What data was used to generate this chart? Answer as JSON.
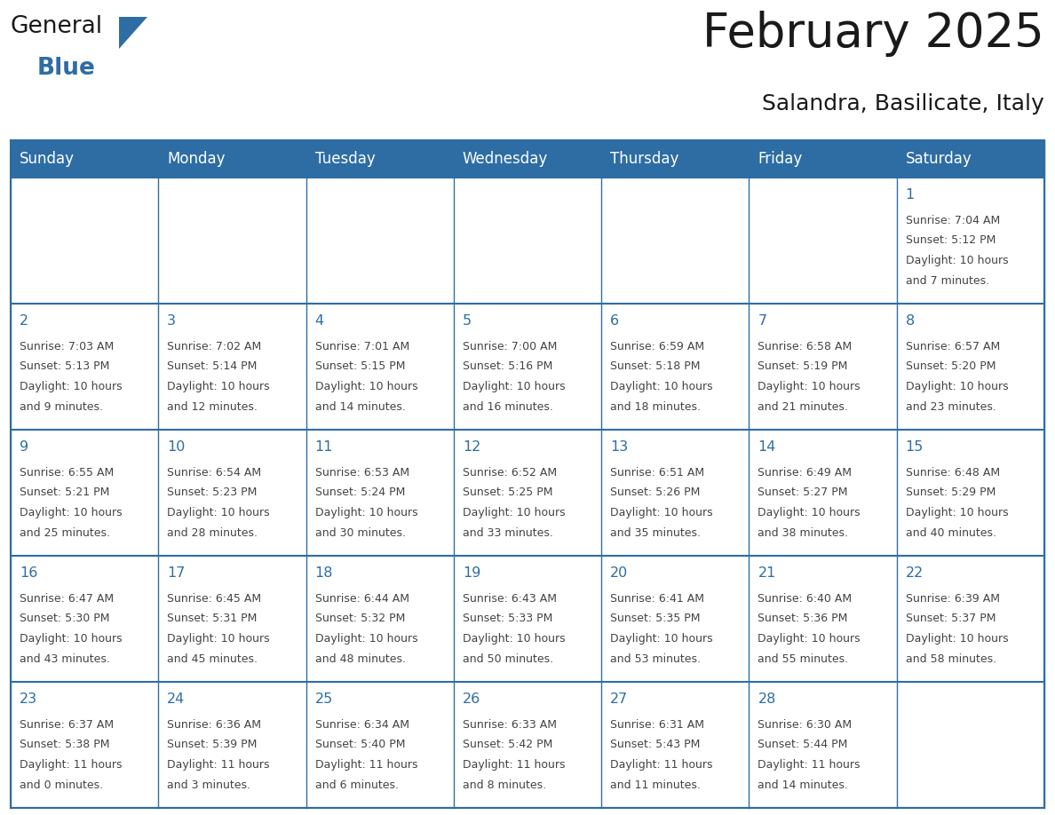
{
  "title": "February 2025",
  "subtitle": "Salandra, Basilicate, Italy",
  "header_bg": "#2E6DA4",
  "header_text_color": "#FFFFFF",
  "cell_bg_white": "#FFFFFF",
  "day_number_color": "#2E6DA4",
  "text_color": "#444444",
  "line_color": "#2E6DA4",
  "days_of_week": [
    "Sunday",
    "Monday",
    "Tuesday",
    "Wednesday",
    "Thursday",
    "Friday",
    "Saturday"
  ],
  "calendar_data": [
    [
      null,
      null,
      null,
      null,
      null,
      null,
      {
        "day": 1,
        "sunrise": "7:04 AM",
        "sunset": "5:12 PM",
        "daylight_line1": "Daylight: 10 hours",
        "daylight_line2": "and 7 minutes."
      }
    ],
    [
      {
        "day": 2,
        "sunrise": "7:03 AM",
        "sunset": "5:13 PM",
        "daylight_line1": "Daylight: 10 hours",
        "daylight_line2": "and 9 minutes."
      },
      {
        "day": 3,
        "sunrise": "7:02 AM",
        "sunset": "5:14 PM",
        "daylight_line1": "Daylight: 10 hours",
        "daylight_line2": "and 12 minutes."
      },
      {
        "day": 4,
        "sunrise": "7:01 AM",
        "sunset": "5:15 PM",
        "daylight_line1": "Daylight: 10 hours",
        "daylight_line2": "and 14 minutes."
      },
      {
        "day": 5,
        "sunrise": "7:00 AM",
        "sunset": "5:16 PM",
        "daylight_line1": "Daylight: 10 hours",
        "daylight_line2": "and 16 minutes."
      },
      {
        "day": 6,
        "sunrise": "6:59 AM",
        "sunset": "5:18 PM",
        "daylight_line1": "Daylight: 10 hours",
        "daylight_line2": "and 18 minutes."
      },
      {
        "day": 7,
        "sunrise": "6:58 AM",
        "sunset": "5:19 PM",
        "daylight_line1": "Daylight: 10 hours",
        "daylight_line2": "and 21 minutes."
      },
      {
        "day": 8,
        "sunrise": "6:57 AM",
        "sunset": "5:20 PM",
        "daylight_line1": "Daylight: 10 hours",
        "daylight_line2": "and 23 minutes."
      }
    ],
    [
      {
        "day": 9,
        "sunrise": "6:55 AM",
        "sunset": "5:21 PM",
        "daylight_line1": "Daylight: 10 hours",
        "daylight_line2": "and 25 minutes."
      },
      {
        "day": 10,
        "sunrise": "6:54 AM",
        "sunset": "5:23 PM",
        "daylight_line1": "Daylight: 10 hours",
        "daylight_line2": "and 28 minutes."
      },
      {
        "day": 11,
        "sunrise": "6:53 AM",
        "sunset": "5:24 PM",
        "daylight_line1": "Daylight: 10 hours",
        "daylight_line2": "and 30 minutes."
      },
      {
        "day": 12,
        "sunrise": "6:52 AM",
        "sunset": "5:25 PM",
        "daylight_line1": "Daylight: 10 hours",
        "daylight_line2": "and 33 minutes."
      },
      {
        "day": 13,
        "sunrise": "6:51 AM",
        "sunset": "5:26 PM",
        "daylight_line1": "Daylight: 10 hours",
        "daylight_line2": "and 35 minutes."
      },
      {
        "day": 14,
        "sunrise": "6:49 AM",
        "sunset": "5:27 PM",
        "daylight_line1": "Daylight: 10 hours",
        "daylight_line2": "and 38 minutes."
      },
      {
        "day": 15,
        "sunrise": "6:48 AM",
        "sunset": "5:29 PM",
        "daylight_line1": "Daylight: 10 hours",
        "daylight_line2": "and 40 minutes."
      }
    ],
    [
      {
        "day": 16,
        "sunrise": "6:47 AM",
        "sunset": "5:30 PM",
        "daylight_line1": "Daylight: 10 hours",
        "daylight_line2": "and 43 minutes."
      },
      {
        "day": 17,
        "sunrise": "6:45 AM",
        "sunset": "5:31 PM",
        "daylight_line1": "Daylight: 10 hours",
        "daylight_line2": "and 45 minutes."
      },
      {
        "day": 18,
        "sunrise": "6:44 AM",
        "sunset": "5:32 PM",
        "daylight_line1": "Daylight: 10 hours",
        "daylight_line2": "and 48 minutes."
      },
      {
        "day": 19,
        "sunrise": "6:43 AM",
        "sunset": "5:33 PM",
        "daylight_line1": "Daylight: 10 hours",
        "daylight_line2": "and 50 minutes."
      },
      {
        "day": 20,
        "sunrise": "6:41 AM",
        "sunset": "5:35 PM",
        "daylight_line1": "Daylight: 10 hours",
        "daylight_line2": "and 53 minutes."
      },
      {
        "day": 21,
        "sunrise": "6:40 AM",
        "sunset": "5:36 PM",
        "daylight_line1": "Daylight: 10 hours",
        "daylight_line2": "and 55 minutes."
      },
      {
        "day": 22,
        "sunrise": "6:39 AM",
        "sunset": "5:37 PM",
        "daylight_line1": "Daylight: 10 hours",
        "daylight_line2": "and 58 minutes."
      }
    ],
    [
      {
        "day": 23,
        "sunrise": "6:37 AM",
        "sunset": "5:38 PM",
        "daylight_line1": "Daylight: 11 hours",
        "daylight_line2": "and 0 minutes."
      },
      {
        "day": 24,
        "sunrise": "6:36 AM",
        "sunset": "5:39 PM",
        "daylight_line1": "Daylight: 11 hours",
        "daylight_line2": "and 3 minutes."
      },
      {
        "day": 25,
        "sunrise": "6:34 AM",
        "sunset": "5:40 PM",
        "daylight_line1": "Daylight: 11 hours",
        "daylight_line2": "and 6 minutes."
      },
      {
        "day": 26,
        "sunrise": "6:33 AM",
        "sunset": "5:42 PM",
        "daylight_line1": "Daylight: 11 hours",
        "daylight_line2": "and 8 minutes."
      },
      {
        "day": 27,
        "sunrise": "6:31 AM",
        "sunset": "5:43 PM",
        "daylight_line1": "Daylight: 11 hours",
        "daylight_line2": "and 11 minutes."
      },
      {
        "day": 28,
        "sunrise": "6:30 AM",
        "sunset": "5:44 PM",
        "daylight_line1": "Daylight: 11 hours",
        "daylight_line2": "and 14 minutes."
      },
      null
    ]
  ],
  "logo_general_color": "#1a1a1a",
  "logo_blue_color": "#2E6DA4",
  "title_color": "#1a1a1a",
  "subtitle_color": "#1a1a1a"
}
